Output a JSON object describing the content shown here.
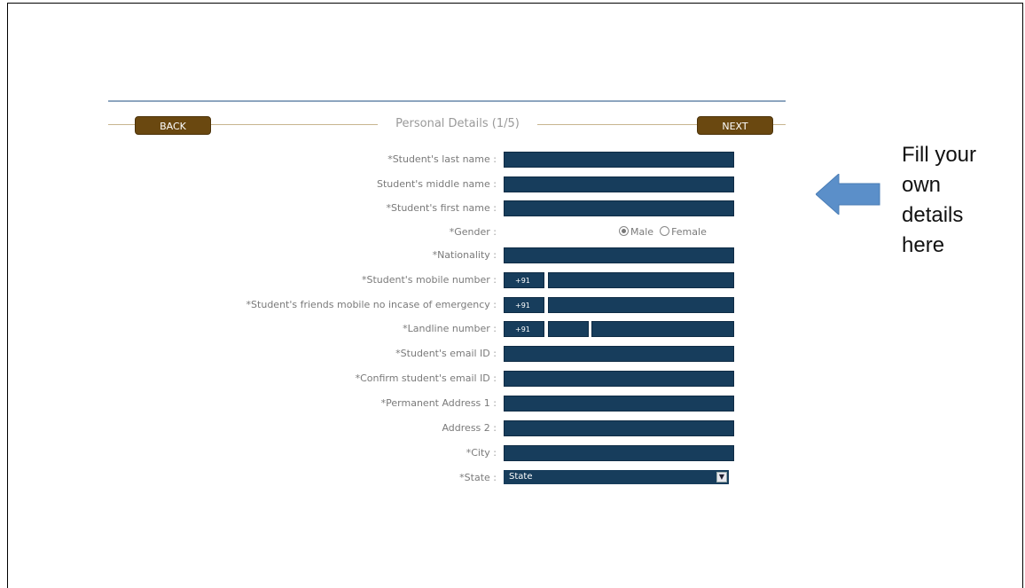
{
  "nav": {
    "back_label": "BACK",
    "next_label": "NEXT",
    "section_title": "Personal Details (1/5)"
  },
  "form": {
    "colon": ":",
    "last_name_label": "*Student's last name",
    "middle_name_label": "Student's middle name",
    "first_name_label": "*Student's first name",
    "gender_label": "*Gender",
    "gender_options": [
      "Male",
      "Female"
    ],
    "gender_selected": "Male",
    "nationality_label": "*Nationality",
    "mobile_label": "*Student's mobile number",
    "friend_mobile_label": "*Student's friends mobile no incase of emergency",
    "landline_label": "*Landline number",
    "country_code": "+91",
    "email_label": "*Student's email ID",
    "confirm_email_label": "*Confirm student's email ID",
    "address1_label": "*Permanent Address 1",
    "address2_label": "Address 2",
    "city_label": "*City",
    "state_label": "*State",
    "state_value": "State"
  },
  "annotation": {
    "text": "Fill your own details here",
    "arrow_color": "#5b8fc9"
  },
  "colors": {
    "field_bg": "#173d5c",
    "button_bg": "#6a4810",
    "rule": "#8da5bf"
  }
}
